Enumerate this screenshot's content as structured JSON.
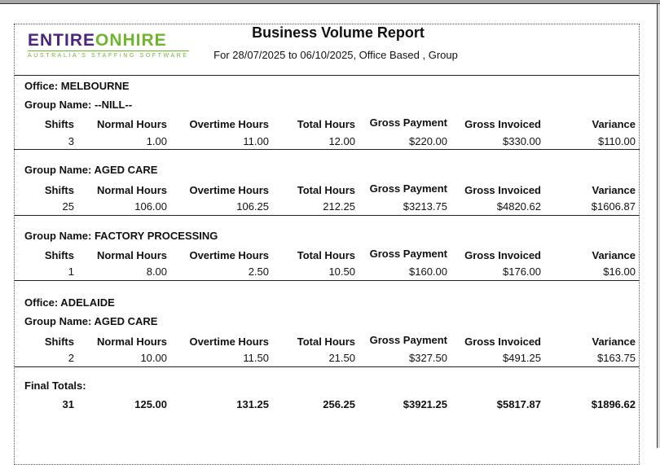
{
  "logo": {
    "brand_part1": "ENTIRE",
    "brand_part2": "ONHIRE",
    "tagline": "AUSTRALIA'S STAFFING SOFTWARE"
  },
  "report": {
    "title": "Business Volume Report",
    "subtitle": "For 28/07/2025 to 06/10/2025, Office Based , Group"
  },
  "columns": [
    "Shifts",
    "Normal Hours",
    "Overtime Hours",
    "Total Hours",
    "Gross Payment",
    "Gross Invoiced",
    "Variance"
  ],
  "sections": [
    {
      "office": "Office: MELBOURNE",
      "group": "Group Name: --NILL--",
      "values": [
        "3",
        "1.00",
        "11.00",
        "12.00",
        "$220.00",
        "$330.00",
        "$110.00"
      ]
    },
    {
      "group": "Group Name: AGED CARE",
      "values": [
        "25",
        "106.00",
        "106.25",
        "212.25",
        "$3213.75",
        "$4820.62",
        "$1606.87"
      ]
    },
    {
      "group": "Group Name: FACTORY PROCESSING",
      "values": [
        "1",
        "8.00",
        "2.50",
        "10.50",
        "$160.00",
        "$176.00",
        "$16.00"
      ]
    },
    {
      "office": "Office: ADELAIDE",
      "group": "Group Name: AGED CARE",
      "values": [
        "2",
        "10.00",
        "11.50",
        "21.50",
        "$327.50",
        "$491.25",
        "$163.75"
      ]
    }
  ],
  "final_totals": {
    "label": "Final Totals:",
    "values": [
      "31",
      "125.00",
      "131.25",
      "256.25",
      "$3921.25",
      "$5817.87",
      "$1896.62"
    ]
  },
  "colors": {
    "brand_purple": "#4b2580",
    "brand_green": "#6fb62f"
  }
}
